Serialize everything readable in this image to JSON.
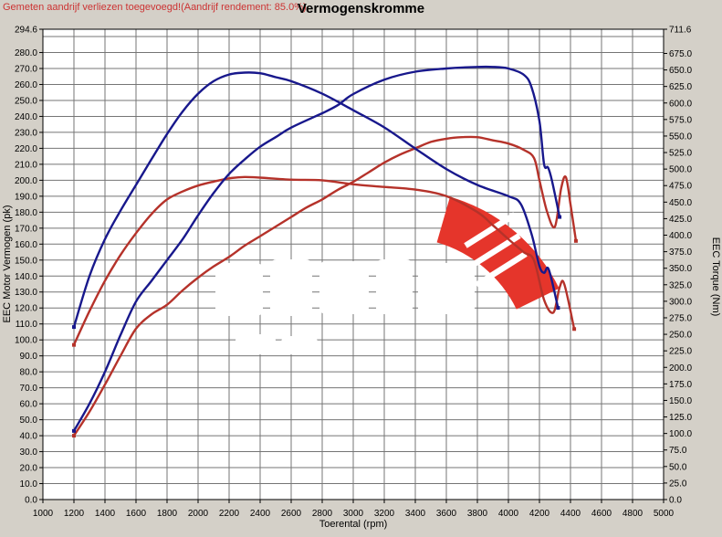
{
  "header": {
    "warning_text": "Gemeten aandrijf verliezen toegevoegd!(Aandrijf rendement: 85.0%)",
    "title": "Vermogenskromme"
  },
  "colors": {
    "background": "#d4d0c8",
    "plot_background": "#ffffff",
    "grid": "#757575",
    "frame": "#000000",
    "text": "#000000",
    "warning_text": "#cc3333",
    "blue_curve": "#18188c",
    "red_curve": "#b5322a",
    "logo_red": "#e5352b",
    "watermark": "#ffffff"
  },
  "chart_data": {
    "type": "line",
    "title": "Vermogenskromme",
    "grid": true,
    "x_axis": {
      "label": "Toerental (rpm)",
      "min": 1000,
      "max": 5000,
      "tick_step": 200,
      "tick_labels": [
        "1000",
        "1200",
        "1400",
        "1600",
        "1800",
        "2000",
        "2200",
        "2400",
        "2600",
        "2800",
        "3000",
        "3200",
        "3400",
        "3600",
        "3800",
        "4000",
        "4200",
        "4400",
        "4600",
        "4800",
        "5000"
      ]
    },
    "y_left_axis": {
      "label": "EEC Motor Vermogen (pk)",
      "min": 0,
      "max": 294.6,
      "tick_step": 10,
      "tick_labels": [
        "294.6",
        "280.0",
        "270.0",
        "260.0",
        "250.0",
        "240.0",
        "230.0",
        "220.0",
        "210.0",
        "200.0",
        "190.0",
        "180.0",
        "170.0",
        "160.0",
        "150.0",
        "140.0",
        "130.0",
        "120.0",
        "110.0",
        "100.0",
        "90.0",
        "80.0",
        "70.0",
        "60.0",
        "50.0",
        "40.0",
        "30.0",
        "20.0",
        "10.0",
        "0.0"
      ]
    },
    "y_right_axis": {
      "label": "EEC Torque (Nm)",
      "min": 0,
      "max": 711.6,
      "tick_step": 25,
      "tick_labels": [
        "711.6",
        "675.0",
        "650.0",
        "625.0",
        "600.0",
        "575.0",
        "550.0",
        "525.0",
        "500.0",
        "475.0",
        "450.0",
        "425.0",
        "400.0",
        "375.0",
        "350.0",
        "325.0",
        "300.0",
        "275.0",
        "250.0",
        "225.0",
        "200.0",
        "175.0",
        "150.0",
        "125.0",
        "100.0",
        "75.0",
        "50.0",
        "25.0",
        "0.0"
      ]
    },
    "series": [
      {
        "id": "torque_red",
        "axis": "right",
        "unit": "Nm",
        "color": "red_curve",
        "points": [
          [
            1200,
            234
          ],
          [
            1300,
            285
          ],
          [
            1400,
            331
          ],
          [
            1500,
            370
          ],
          [
            1600,
            403
          ],
          [
            1700,
            432
          ],
          [
            1800,
            454
          ],
          [
            1900,
            466
          ],
          [
            2000,
            475
          ],
          [
            2100,
            481
          ],
          [
            2200,
            486
          ],
          [
            2300,
            488
          ],
          [
            2400,
            487
          ],
          [
            2600,
            484
          ],
          [
            2800,
            483
          ],
          [
            3000,
            477
          ],
          [
            3200,
            473
          ],
          [
            3400,
            469
          ],
          [
            3600,
            459
          ],
          [
            3800,
            435
          ],
          [
            3900,
            415
          ],
          [
            4000,
            394
          ],
          [
            4100,
            374
          ],
          [
            4165,
            362
          ],
          [
            4230,
            302
          ],
          [
            4290,
            283
          ],
          [
            4330,
            321
          ],
          [
            4360,
            326
          ],
          [
            4424,
            258
          ]
        ]
      },
      {
        "id": "power_red",
        "axis": "left",
        "unit": "pk",
        "color": "red_curve",
        "points": [
          [
            1200,
            40
          ],
          [
            1300,
            55
          ],
          [
            1400,
            72
          ],
          [
            1500,
            90
          ],
          [
            1600,
            107
          ],
          [
            1700,
            116
          ],
          [
            1800,
            122
          ],
          [
            1900,
            131
          ],
          [
            2000,
            139
          ],
          [
            2100,
            146
          ],
          [
            2200,
            152
          ],
          [
            2300,
            159
          ],
          [
            2400,
            165
          ],
          [
            2500,
            171
          ],
          [
            2600,
            177
          ],
          [
            2700,
            183
          ],
          [
            2800,
            188
          ],
          [
            2900,
            194
          ],
          [
            3000,
            199
          ],
          [
            3100,
            205
          ],
          [
            3200,
            211
          ],
          [
            3300,
            216
          ],
          [
            3400,
            220
          ],
          [
            3500,
            224
          ],
          [
            3600,
            226
          ],
          [
            3700,
            227
          ],
          [
            3800,
            227
          ],
          [
            3900,
            225
          ],
          [
            4000,
            223
          ],
          [
            4100,
            219
          ],
          [
            4165,
            214
          ],
          [
            4200,
            200
          ],
          [
            4250,
            180
          ],
          [
            4300,
            171
          ],
          [
            4340,
            195
          ],
          [
            4370,
            202
          ],
          [
            4400,
            185
          ],
          [
            4435,
            162
          ]
        ]
      },
      {
        "id": "torque_blue",
        "axis": "right",
        "unit": "Nm",
        "color": "blue_curve",
        "points": [
          [
            1200,
            261
          ],
          [
            1300,
            338
          ],
          [
            1400,
            394
          ],
          [
            1500,
            437
          ],
          [
            1600,
            476
          ],
          [
            1700,
            515
          ],
          [
            1800,
            553
          ],
          [
            1900,
            587
          ],
          [
            2000,
            614
          ],
          [
            2100,
            633
          ],
          [
            2200,
            643
          ],
          [
            2300,
            646
          ],
          [
            2400,
            645
          ],
          [
            2500,
            639
          ],
          [
            2600,
            633
          ],
          [
            2800,
            614
          ],
          [
            3000,
            589
          ],
          [
            3200,
            563
          ],
          [
            3400,
            531
          ],
          [
            3600,
            500
          ],
          [
            3800,
            476
          ],
          [
            4000,
            459
          ],
          [
            4080,
            447
          ],
          [
            4150,
            401
          ],
          [
            4200,
            353
          ],
          [
            4230,
            343
          ],
          [
            4260,
            348
          ],
          [
            4320,
            290
          ]
        ]
      },
      {
        "id": "power_blue",
        "axis": "left",
        "unit": "pk",
        "color": "blue_curve",
        "points": [
          [
            1200,
            43
          ],
          [
            1300,
            60
          ],
          [
            1400,
            80
          ],
          [
            1500,
            103
          ],
          [
            1600,
            124
          ],
          [
            1700,
            137
          ],
          [
            1800,
            150
          ],
          [
            1900,
            163
          ],
          [
            2000,
            178
          ],
          [
            2100,
            192
          ],
          [
            2200,
            204
          ],
          [
            2300,
            213
          ],
          [
            2400,
            221
          ],
          [
            2500,
            227
          ],
          [
            2600,
            233
          ],
          [
            2800,
            242
          ],
          [
            2900,
            247
          ],
          [
            3000,
            254
          ],
          [
            3200,
            263
          ],
          [
            3400,
            268
          ],
          [
            3600,
            270
          ],
          [
            3800,
            271
          ],
          [
            3900,
            271
          ],
          [
            4000,
            270
          ],
          [
            4100,
            266
          ],
          [
            4150,
            258
          ],
          [
            4200,
            237
          ],
          [
            4230,
            210
          ],
          [
            4255,
            208
          ],
          [
            4280,
            200
          ],
          [
            4330,
            177
          ]
        ]
      }
    ]
  }
}
